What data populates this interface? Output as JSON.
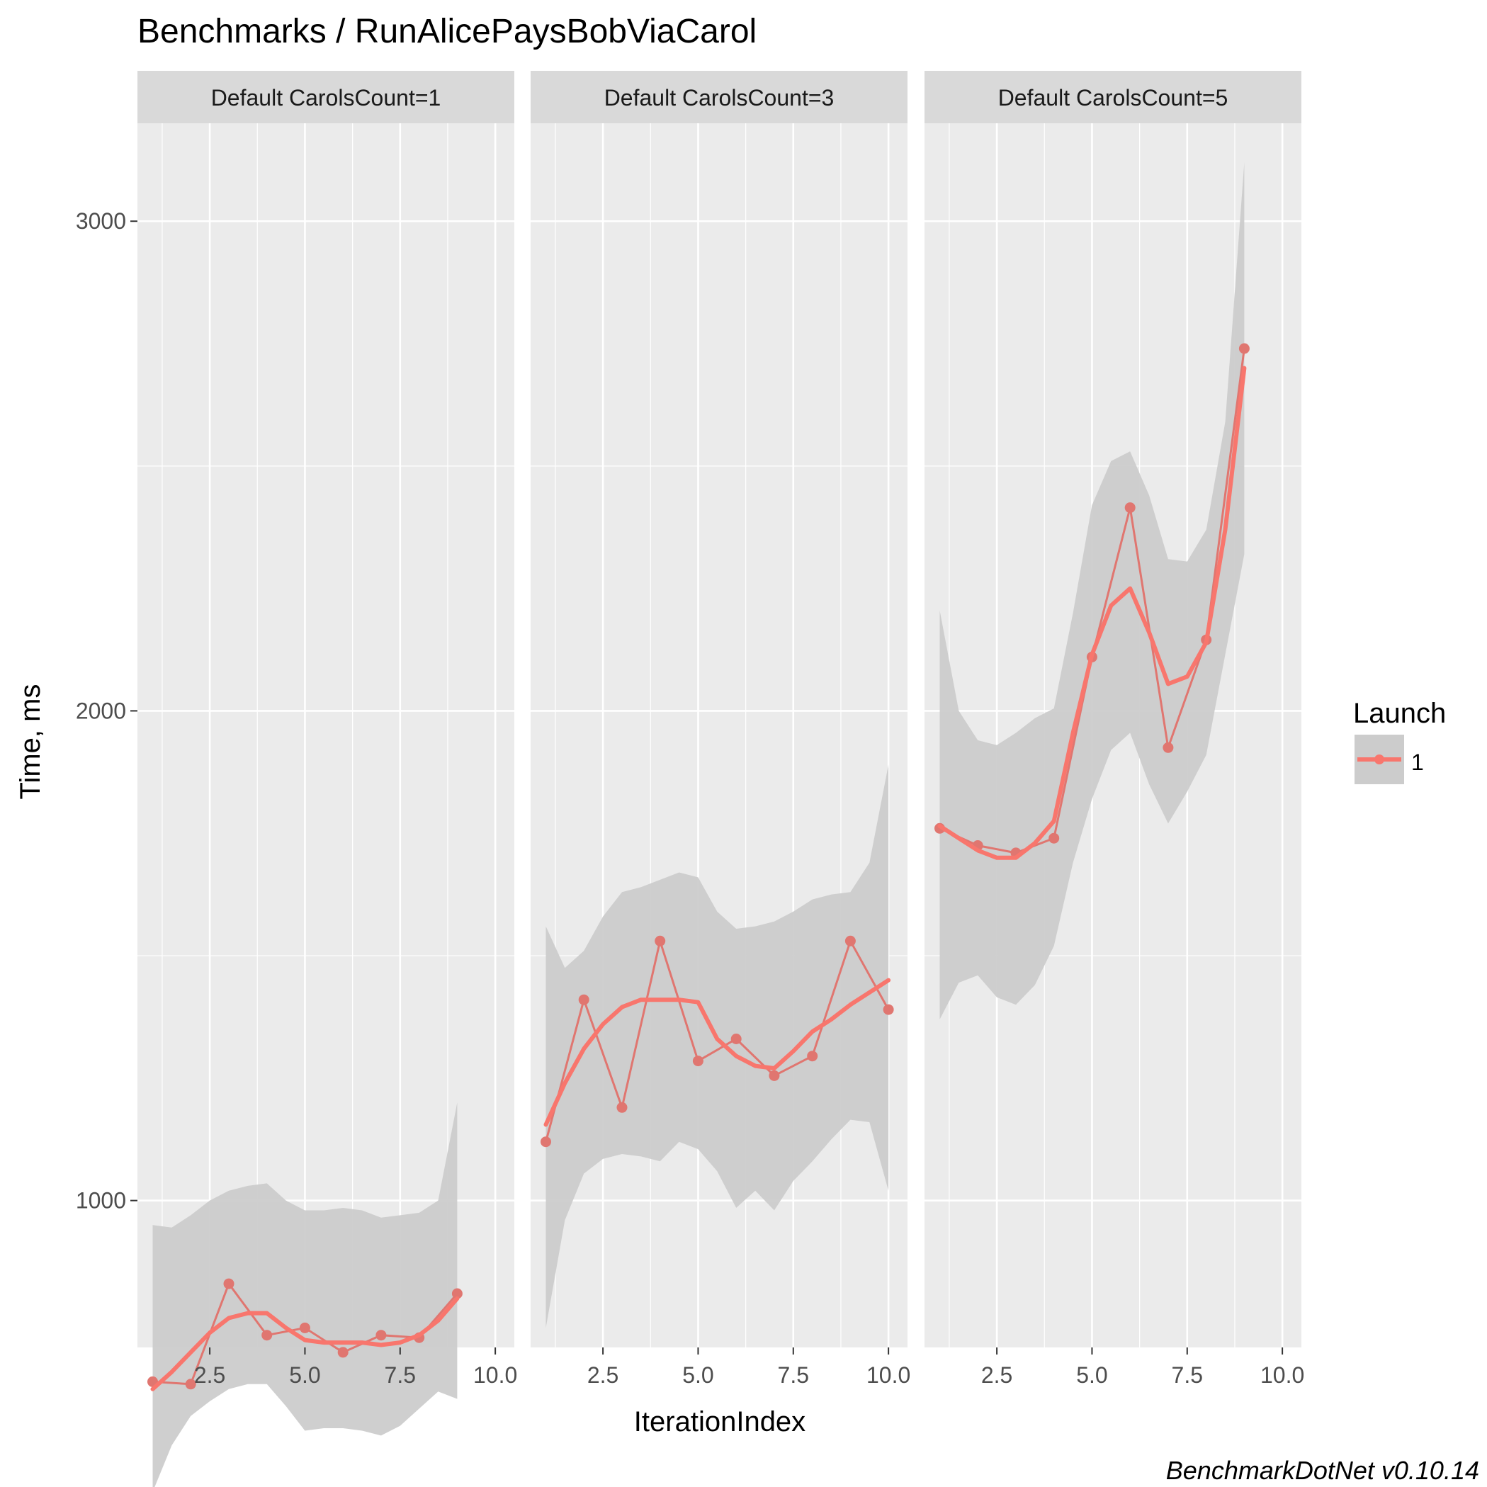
{
  "chart_data": {
    "type": "line",
    "title": "Benchmarks / RunAlicePaysBobViaCarol",
    "xlabel": "IterationIndex",
    "ylabel": "Time, ms",
    "footer": "BenchmarkDotNet v0.10.14",
    "xlim": [
      0.6,
      10.5
    ],
    "ylim": [
      700,
      3200
    ],
    "x_ticks": [
      2.5,
      5.0,
      7.5,
      10.0
    ],
    "x_tick_labels": [
      "2.5",
      "5.0",
      "7.5",
      "10.0"
    ],
    "y_ticks": [
      1000,
      2000,
      3000
    ],
    "y_tick_labels": [
      "1000",
      "2000",
      "3000"
    ],
    "grid": true,
    "legend": {
      "title": "Launch",
      "position": "right",
      "entries": [
        "1"
      ]
    },
    "colors": {
      "series": "#F8766D",
      "points": "#E07670",
      "ribbon": "#CCCCCC",
      "panel_bg": "#EBEBEB",
      "strip_bg": "#D9D9D9",
      "grid": "#FFFFFF"
    },
    "panels": [
      {
        "label": "Default CarolsCount=1",
        "series": [
          {
            "name": "1",
            "x": [
              1,
              2,
              3,
              4,
              5,
              6,
              7,
              8,
              9
            ],
            "values": [
              630,
              625,
              830,
              725,
              740,
              690,
              725,
              720,
              810
            ]
          }
        ],
        "smooth": [
          [
            1.0,
            615
          ],
          [
            1.5,
            650
          ],
          [
            2.0,
            690
          ],
          [
            2.5,
            730
          ],
          [
            3.0,
            760
          ],
          [
            3.5,
            770
          ],
          [
            4.0,
            770
          ],
          [
            4.5,
            740
          ],
          [
            5.0,
            715
          ],
          [
            5.5,
            710
          ],
          [
            6.0,
            710
          ],
          [
            6.5,
            710
          ],
          [
            7.0,
            705
          ],
          [
            7.5,
            710
          ],
          [
            8.0,
            725
          ],
          [
            8.5,
            755
          ],
          [
            9.0,
            800
          ]
        ],
        "band_upper": [
          [
            1.0,
            950
          ],
          [
            1.5,
            945
          ],
          [
            2.0,
            970
          ],
          [
            2.5,
            1000
          ],
          [
            3.0,
            1020
          ],
          [
            3.5,
            1030
          ],
          [
            4.0,
            1035
          ],
          [
            4.5,
            1000
          ],
          [
            5.0,
            980
          ],
          [
            5.5,
            980
          ],
          [
            6.0,
            985
          ],
          [
            6.5,
            980
          ],
          [
            7.0,
            965
          ],
          [
            7.5,
            970
          ],
          [
            8.0,
            975
          ],
          [
            8.5,
            1000
          ],
          [
            9.0,
            1200
          ]
        ],
        "band_lower": [
          [
            1.0,
            405
          ],
          [
            1.5,
            500
          ],
          [
            2.0,
            560
          ],
          [
            2.5,
            590
          ],
          [
            3.0,
            615
          ],
          [
            3.5,
            625
          ],
          [
            4.0,
            625
          ],
          [
            4.5,
            580
          ],
          [
            5.0,
            530
          ],
          [
            5.5,
            535
          ],
          [
            6.0,
            535
          ],
          [
            6.5,
            530
          ],
          [
            7.0,
            520
          ],
          [
            7.5,
            540
          ],
          [
            8.0,
            575
          ],
          [
            8.5,
            610
          ],
          [
            9.0,
            595
          ]
        ]
      },
      {
        "label": "Default CarolsCount=3",
        "series": [
          {
            "name": "1",
            "x": [
              1,
              2,
              3,
              4,
              5,
              6,
              7,
              8,
              9,
              10
            ],
            "values": [
              1120,
              1410,
              1190,
              1530,
              1285,
              1330,
              1255,
              1295,
              1530,
              1390
            ]
          }
        ],
        "smooth": [
          [
            1.0,
            1155
          ],
          [
            1.5,
            1240
          ],
          [
            2.0,
            1310
          ],
          [
            2.5,
            1360
          ],
          [
            3.0,
            1395
          ],
          [
            3.5,
            1410
          ],
          [
            4.0,
            1410
          ],
          [
            4.5,
            1410
          ],
          [
            5.0,
            1405
          ],
          [
            5.5,
            1330
          ],
          [
            6.0,
            1295
          ],
          [
            6.5,
            1275
          ],
          [
            7.0,
            1270
          ],
          [
            7.5,
            1305
          ],
          [
            8.0,
            1345
          ],
          [
            8.5,
            1370
          ],
          [
            9.0,
            1400
          ],
          [
            9.5,
            1425
          ],
          [
            10.0,
            1450
          ]
        ],
        "band_upper": [
          [
            1.0,
            1560
          ],
          [
            1.5,
            1475
          ],
          [
            2.0,
            1510
          ],
          [
            2.5,
            1580
          ],
          [
            3.0,
            1630
          ],
          [
            3.5,
            1640
          ],
          [
            4.0,
            1655
          ],
          [
            4.5,
            1670
          ],
          [
            5.0,
            1660
          ],
          [
            5.5,
            1590
          ],
          [
            6.0,
            1555
          ],
          [
            6.5,
            1560
          ],
          [
            7.0,
            1570
          ],
          [
            7.5,
            1590
          ],
          [
            8.0,
            1615
          ],
          [
            8.5,
            1625
          ],
          [
            9.0,
            1630
          ],
          [
            9.5,
            1690
          ],
          [
            10.0,
            1890
          ]
        ],
        "band_lower": [
          [
            1.0,
            740
          ],
          [
            1.5,
            960
          ],
          [
            2.0,
            1055
          ],
          [
            2.5,
            1085
          ],
          [
            3.0,
            1095
          ],
          [
            3.5,
            1090
          ],
          [
            4.0,
            1080
          ],
          [
            4.5,
            1120
          ],
          [
            5.0,
            1105
          ],
          [
            5.5,
            1060
          ],
          [
            6.0,
            985
          ],
          [
            6.5,
            1020
          ],
          [
            7.0,
            980
          ],
          [
            7.5,
            1040
          ],
          [
            8.0,
            1080
          ],
          [
            8.5,
            1125
          ],
          [
            9.0,
            1165
          ],
          [
            9.5,
            1160
          ],
          [
            10.0,
            1020
          ]
        ]
      },
      {
        "label": "Default CarolsCount=5",
        "series": [
          {
            "name": "1",
            "x": [
              1,
              2,
              3,
              4,
              5,
              6,
              7,
              8,
              9
            ],
            "values": [
              1760,
              1725,
              1710,
              1740,
              2110,
              2415,
              1925,
              2145,
              2740
            ]
          }
        ],
        "smooth": [
          [
            1.0,
            1765
          ],
          [
            1.5,
            1740
          ],
          [
            2.0,
            1715
          ],
          [
            2.5,
            1700
          ],
          [
            3.0,
            1700
          ],
          [
            3.5,
            1730
          ],
          [
            4.0,
            1775
          ],
          [
            4.5,
            1955
          ],
          [
            5.0,
            2115
          ],
          [
            5.5,
            2215
          ],
          [
            6.0,
            2250
          ],
          [
            6.5,
            2160
          ],
          [
            7.0,
            2055
          ],
          [
            7.5,
            2070
          ],
          [
            8.0,
            2140
          ],
          [
            8.5,
            2370
          ],
          [
            9.0,
            2700
          ]
        ],
        "band_upper": [
          [
            1.0,
            2205
          ],
          [
            1.5,
            2000
          ],
          [
            2.0,
            1940
          ],
          [
            2.5,
            1930
          ],
          [
            3.0,
            1955
          ],
          [
            3.5,
            1985
          ],
          [
            4.0,
            2005
          ],
          [
            4.5,
            2200
          ],
          [
            5.0,
            2420
          ],
          [
            5.5,
            2510
          ],
          [
            6.0,
            2530
          ],
          [
            6.5,
            2440
          ],
          [
            7.0,
            2310
          ],
          [
            7.5,
            2305
          ],
          [
            8.0,
            2370
          ],
          [
            8.5,
            2590
          ],
          [
            9.0,
            3120
          ]
        ],
        "band_lower": [
          [
            1.0,
            1370
          ],
          [
            1.5,
            1445
          ],
          [
            2.0,
            1460
          ],
          [
            2.5,
            1415
          ],
          [
            3.0,
            1400
          ],
          [
            3.5,
            1440
          ],
          [
            4.0,
            1520
          ],
          [
            4.5,
            1690
          ],
          [
            5.0,
            1820
          ],
          [
            5.5,
            1920
          ],
          [
            6.0,
            1955
          ],
          [
            6.5,
            1850
          ],
          [
            7.0,
            1770
          ],
          [
            7.5,
            1835
          ],
          [
            8.0,
            1910
          ],
          [
            8.5,
            2115
          ],
          [
            9.0,
            2320
          ]
        ]
      }
    ]
  }
}
